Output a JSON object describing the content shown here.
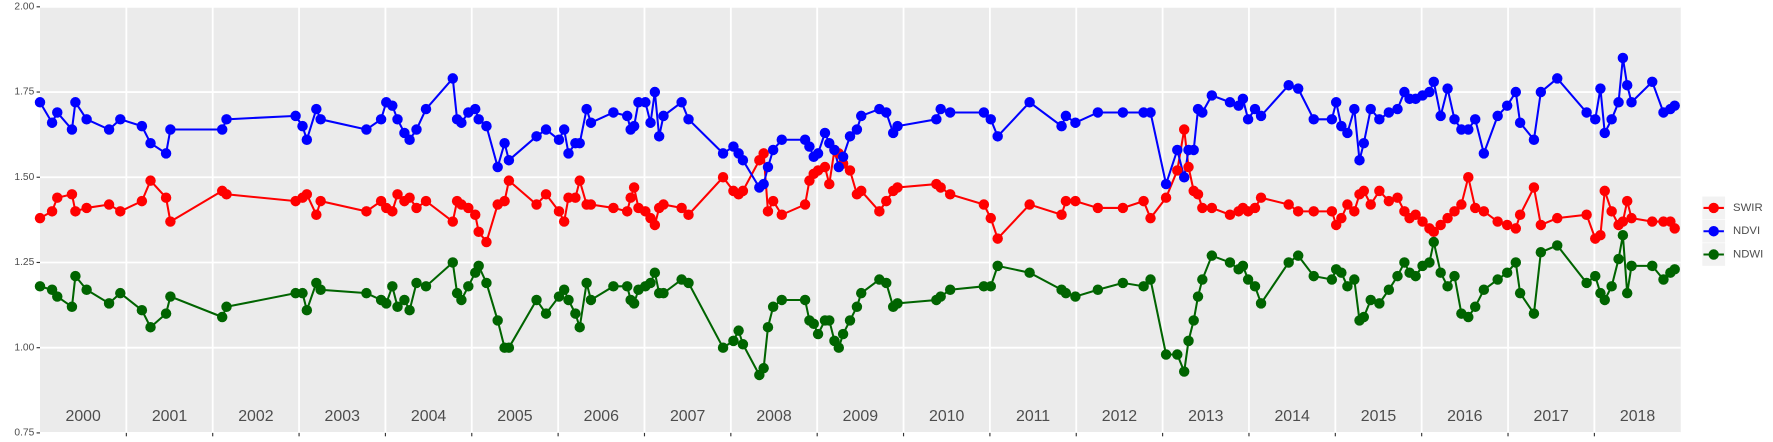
{
  "chart_data": {
    "type": "line",
    "x": [
      2000.0,
      2000.14,
      2000.2,
      2000.37,
      2000.41,
      2000.54,
      2000.8,
      2000.93,
      2001.18,
      2001.28,
      2001.46,
      2001.51,
      2002.11,
      2002.16,
      2002.96,
      2003.04,
      2003.09,
      2003.2,
      2003.25,
      2003.78,
      2003.95,
      2004.01,
      2004.08,
      2004.14,
      2004.22,
      2004.28,
      2004.36,
      2004.47,
      2004.78,
      2004.83,
      2004.88,
      2004.96,
      2005.04,
      2005.08,
      2005.17,
      2005.3,
      2005.38,
      2005.43,
      2005.75,
      2005.86,
      2006.01,
      2006.07,
      2006.12,
      2006.2,
      2006.25,
      2006.33,
      2006.38,
      2006.64,
      2006.8,
      2006.84,
      2006.88,
      2006.93,
      2007.01,
      2007.07,
      2007.12,
      2007.17,
      2007.22,
      2007.43,
      2007.51,
      2007.91,
      2008.03,
      2008.09,
      2008.14,
      2008.33,
      2008.38,
      2008.43,
      2008.49,
      2008.59,
      2008.86,
      2008.91,
      2008.96,
      2009.01,
      2009.09,
      2009.14,
      2009.2,
      2009.25,
      2009.3,
      2009.38,
      2009.46,
      2009.51,
      2009.72,
      2009.8,
      2009.88,
      2009.93,
      2010.38,
      2010.43,
      2010.54,
      2010.93,
      2011.01,
      2011.09,
      2011.46,
      2011.83,
      2011.88,
      2011.99,
      2012.25,
      2012.54,
      2012.78,
      2012.86,
      2013.04,
      2013.17,
      2013.25,
      2013.3,
      2013.36,
      2013.41,
      2013.46,
      2013.57,
      2013.78,
      2013.88,
      2013.93,
      2013.99,
      2014.07,
      2014.14,
      2014.46,
      2014.57,
      2014.75,
      2014.96,
      2015.01,
      2015.07,
      2015.14,
      2015.22,
      2015.28,
      2015.33,
      2015.41,
      2015.51,
      2015.62,
      2015.72,
      2015.8,
      2015.86,
      2015.93,
      2016.01,
      2016.09,
      2016.14,
      2016.22,
      2016.3,
      2016.38,
      2016.46,
      2016.54,
      2016.62,
      2016.72,
      2016.88,
      2016.99,
      2017.09,
      2017.14,
      2017.3,
      2017.38,
      2017.57,
      2017.91,
      2018.01,
      2018.07,
      2018.12,
      2018.2,
      2018.28,
      2018.33,
      2018.38,
      2018.43,
      2018.67,
      2018.8,
      2018.88,
      2018.93
    ],
    "series": [
      {
        "name": "SWIR",
        "color": "#ff0000",
        "values": [
          1.38,
          1.4,
          1.44,
          1.45,
          1.4,
          1.41,
          1.42,
          1.4,
          1.43,
          1.49,
          1.44,
          1.37,
          1.46,
          1.45,
          1.43,
          1.44,
          1.45,
          1.39,
          1.43,
          1.4,
          1.43,
          1.41,
          1.4,
          1.45,
          1.43,
          1.44,
          1.41,
          1.43,
          1.37,
          1.43,
          1.42,
          1.41,
          1.39,
          1.34,
          1.31,
          1.42,
          1.43,
          1.49,
          1.42,
          1.45,
          1.4,
          1.37,
          1.44,
          1.44,
          1.49,
          1.42,
          1.42,
          1.41,
          1.4,
          1.44,
          1.47,
          1.41,
          1.4,
          1.38,
          1.36,
          1.41,
          1.42,
          1.41,
          1.39,
          1.5,
          1.46,
          1.45,
          1.46,
          1.55,
          1.57,
          1.4,
          1.43,
          1.39,
          1.42,
          1.49,
          1.51,
          1.52,
          1.53,
          1.48,
          1.58,
          1.57,
          1.54,
          1.52,
          1.45,
          1.46,
          1.4,
          1.43,
          1.46,
          1.47,
          1.48,
          1.47,
          1.45,
          1.42,
          1.38,
          1.32,
          1.42,
          1.39,
          1.43,
          1.43,
          1.41,
          1.41,
          1.43,
          1.38,
          1.44,
          1.52,
          1.64,
          1.53,
          1.46,
          1.45,
          1.41,
          1.41,
          1.39,
          1.4,
          1.41,
          1.4,
          1.41,
          1.44,
          1.42,
          1.4,
          1.4,
          1.4,
          1.36,
          1.38,
          1.42,
          1.4,
          1.45,
          1.46,
          1.42,
          1.46,
          1.43,
          1.44,
          1.4,
          1.38,
          1.39,
          1.37,
          1.35,
          1.34,
          1.36,
          1.38,
          1.4,
          1.42,
          1.5,
          1.41,
          1.4,
          1.37,
          1.36,
          1.35,
          1.39,
          1.47,
          1.36,
          1.38,
          1.39,
          1.32,
          1.33,
          1.46,
          1.4,
          1.36,
          1.37,
          1.43,
          1.38,
          1.37,
          1.37,
          1.37,
          1.35
        ]
      },
      {
        "name": "NDVI",
        "color": "#0000ff",
        "values": [
          1.72,
          1.66,
          1.69,
          1.64,
          1.72,
          1.67,
          1.64,
          1.67,
          1.65,
          1.6,
          1.57,
          1.64,
          1.64,
          1.67,
          1.68,
          1.65,
          1.61,
          1.7,
          1.67,
          1.64,
          1.67,
          1.72,
          1.71,
          1.67,
          1.63,
          1.61,
          1.64,
          1.7,
          1.79,
          1.67,
          1.66,
          1.69,
          1.7,
          1.67,
          1.65,
          1.53,
          1.6,
          1.55,
          1.62,
          1.64,
          1.61,
          1.64,
          1.57,
          1.6,
          1.6,
          1.7,
          1.66,
          1.69,
          1.68,
          1.64,
          1.65,
          1.72,
          1.72,
          1.66,
          1.75,
          1.62,
          1.68,
          1.72,
          1.67,
          1.57,
          1.59,
          1.57,
          1.55,
          1.47,
          1.48,
          1.53,
          1.58,
          1.61,
          1.61,
          1.59,
          1.56,
          1.57,
          1.63,
          1.6,
          1.58,
          1.53,
          1.56,
          1.62,
          1.64,
          1.68,
          1.7,
          1.69,
          1.63,
          1.65,
          1.67,
          1.7,
          1.69,
          1.69,
          1.67,
          1.62,
          1.72,
          1.65,
          1.68,
          1.66,
          1.69,
          1.69,
          1.69,
          1.69,
          1.48,
          1.58,
          1.5,
          1.58,
          1.58,
          1.7,
          1.69,
          1.74,
          1.72,
          1.71,
          1.73,
          1.67,
          1.7,
          1.68,
          1.77,
          1.76,
          1.67,
          1.67,
          1.72,
          1.65,
          1.63,
          1.7,
          1.55,
          1.6,
          1.7,
          1.67,
          1.69,
          1.7,
          1.75,
          1.73,
          1.73,
          1.74,
          1.75,
          1.78,
          1.68,
          1.76,
          1.67,
          1.64,
          1.64,
          1.67,
          1.57,
          1.68,
          1.71,
          1.75,
          1.66,
          1.61,
          1.75,
          1.79,
          1.69,
          1.67,
          1.76,
          1.63,
          1.67,
          1.72,
          1.85,
          1.77,
          1.72,
          1.78,
          1.69,
          1.7,
          1.71
        ]
      },
      {
        "name": "NDWI",
        "color": "#006400",
        "values": [
          1.18,
          1.17,
          1.15,
          1.12,
          1.21,
          1.17,
          1.13,
          1.16,
          1.11,
          1.06,
          1.1,
          1.15,
          1.09,
          1.12,
          1.16,
          1.16,
          1.11,
          1.19,
          1.17,
          1.16,
          1.14,
          1.13,
          1.18,
          1.12,
          1.14,
          1.11,
          1.19,
          1.18,
          1.25,
          1.16,
          1.14,
          1.18,
          1.22,
          1.24,
          1.19,
          1.08,
          1.0,
          1.0,
          1.14,
          1.1,
          1.15,
          1.17,
          1.14,
          1.1,
          1.06,
          1.19,
          1.14,
          1.18,
          1.18,
          1.14,
          1.13,
          1.17,
          1.18,
          1.19,
          1.22,
          1.16,
          1.16,
          1.2,
          1.19,
          1.0,
          1.02,
          1.05,
          1.01,
          0.92,
          0.94,
          1.06,
          1.12,
          1.14,
          1.14,
          1.08,
          1.07,
          1.04,
          1.08,
          1.08,
          1.02,
          1.0,
          1.04,
          1.08,
          1.12,
          1.16,
          1.2,
          1.19,
          1.12,
          1.13,
          1.14,
          1.15,
          1.17,
          1.18,
          1.18,
          1.24,
          1.22,
          1.17,
          1.16,
          1.15,
          1.17,
          1.19,
          1.18,
          1.2,
          0.98,
          0.98,
          0.93,
          1.02,
          1.08,
          1.15,
          1.2,
          1.27,
          1.25,
          1.23,
          1.24,
          1.2,
          1.18,
          1.13,
          1.25,
          1.27,
          1.21,
          1.2,
          1.23,
          1.22,
          1.18,
          1.2,
          1.08,
          1.09,
          1.14,
          1.13,
          1.17,
          1.21,
          1.25,
          1.22,
          1.21,
          1.24,
          1.25,
          1.31,
          1.22,
          1.18,
          1.21,
          1.1,
          1.09,
          1.12,
          1.17,
          1.2,
          1.22,
          1.25,
          1.16,
          1.1,
          1.28,
          1.3,
          1.19,
          1.21,
          1.16,
          1.14,
          1.18,
          1.26,
          1.33,
          1.16,
          1.24,
          1.24,
          1.2,
          1.22,
          1.23
        ]
      }
    ],
    "xlim": [
      2000,
      2019
    ],
    "xticks": [
      2001,
      2002,
      2003,
      2004,
      2005,
      2006,
      2007,
      2008,
      2009,
      2010,
      2011,
      2012,
      2013,
      2014,
      2015,
      2016,
      2017,
      2018
    ],
    "year_labels": [
      2000,
      2001,
      2002,
      2003,
      2004,
      2005,
      2006,
      2007,
      2008,
      2009,
      2010,
      2011,
      2012,
      2013,
      2014,
      2015,
      2016,
      2017,
      2018
    ],
    "ylim": [
      0.75,
      2.0
    ],
    "yticks": [
      {
        "value": 0.75,
        "label": "0.75"
      },
      {
        "value": 1.0,
        "label": "1.00"
      },
      1.25,
      {
        "value": 1.5,
        "label": "1.50"
      },
      1.75,
      {
        "value": 2.0,
        "label": "2.00"
      }
    ],
    "grid": true
  }
}
